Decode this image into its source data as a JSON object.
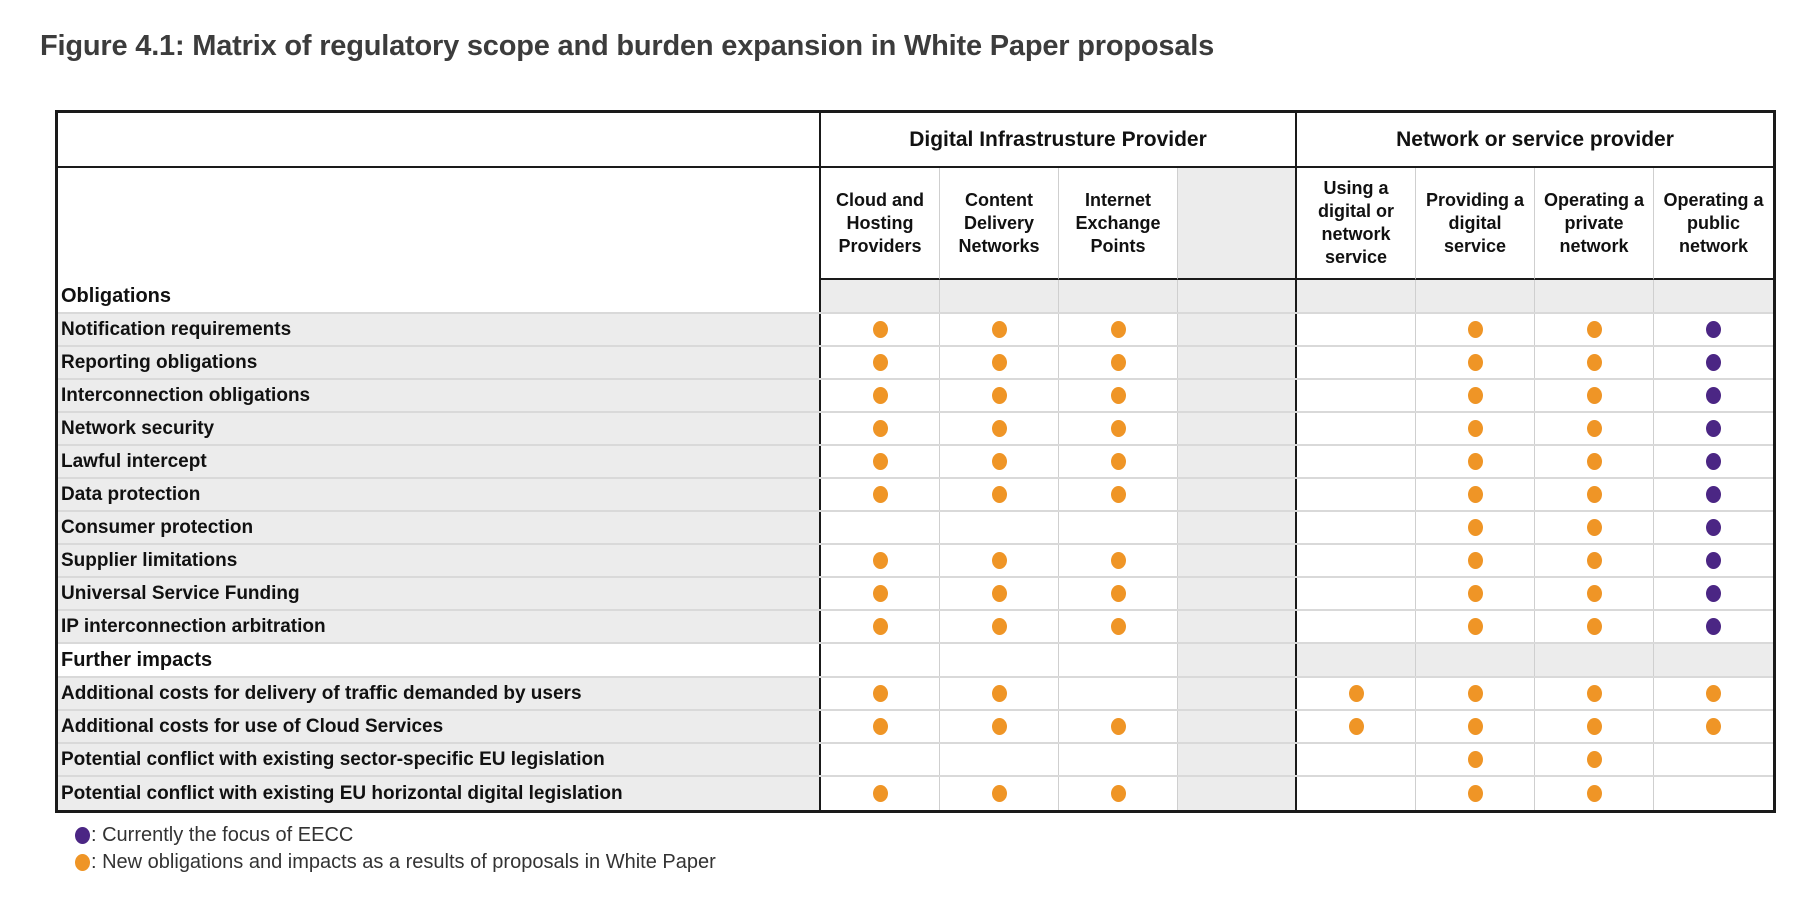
{
  "title": "Figure 4.1: Matrix of regulatory scope and burden expansion in White Paper proposals",
  "colors": {
    "orange": "#EF9526",
    "purple": "#4B2684",
    "shaded_cell": "#ececec",
    "grid_black": "#1a1a1a",
    "row_separator": "#d9d9d9",
    "title_gray": "#3c3c3c"
  },
  "chart_data": {
    "type": "table",
    "title": "Figure 4.1: Matrix of regulatory scope and burden expansion in White Paper proposals",
    "cell_codes": {
      "o": "orange dot",
      "p": "purple dot",
      "g": "shaded empty cell",
      "": "empty cell"
    },
    "column_groups": [
      {
        "label": "Digital Infrastrusture Provider",
        "span": 4
      },
      {
        "label": "Network or service provider",
        "span": 4
      }
    ],
    "columns": [
      "Cloud and Hosting Providers",
      "Content Delivery Networks",
      "Internet Exchange Points",
      "",
      "Using a digital or network service",
      "Providing a digital service",
      "Operating a private network",
      "Operating a public network"
    ],
    "rows": [
      {
        "type": "section",
        "label": "Obligations",
        "cells": [
          "g",
          "g",
          "g",
          "g",
          "g",
          "g",
          "g",
          "g"
        ]
      },
      {
        "type": "data",
        "label": "Notification requirements",
        "cells": [
          "o",
          "o",
          "o",
          "g",
          "",
          "o",
          "o",
          "p"
        ]
      },
      {
        "type": "data",
        "label": "Reporting obligations",
        "cells": [
          "o",
          "o",
          "o",
          "g",
          "",
          "o",
          "o",
          "p"
        ]
      },
      {
        "type": "data",
        "label": "Interconnection obligations",
        "cells": [
          "o",
          "o",
          "o",
          "g",
          "",
          "o",
          "o",
          "p"
        ]
      },
      {
        "type": "data",
        "label": "Network security",
        "cells": [
          "o",
          "o",
          "o",
          "g",
          "",
          "o",
          "o",
          "p"
        ]
      },
      {
        "type": "data",
        "label": "Lawful intercept",
        "cells": [
          "o",
          "o",
          "o",
          "g",
          "",
          "o",
          "o",
          "p"
        ]
      },
      {
        "type": "data",
        "label": "Data protection",
        "cells": [
          "o",
          "o",
          "o",
          "g",
          "",
          "o",
          "o",
          "p"
        ]
      },
      {
        "type": "data",
        "label": "Consumer protection",
        "cells": [
          "",
          "",
          "",
          "g",
          "",
          "o",
          "o",
          "p"
        ]
      },
      {
        "type": "data",
        "label": "Supplier limitations",
        "cells": [
          "o",
          "o",
          "o",
          "g",
          "",
          "o",
          "o",
          "p"
        ]
      },
      {
        "type": "data",
        "label": "Universal Service Funding",
        "cells": [
          "o",
          "o",
          "o",
          "g",
          "",
          "o",
          "o",
          "p"
        ]
      },
      {
        "type": "data",
        "label": "IP interconnection arbitration",
        "cells": [
          "o",
          "o",
          "o",
          "g",
          "",
          "o",
          "o",
          "p"
        ]
      },
      {
        "type": "section",
        "label": "Further impacts",
        "cells": [
          "",
          "",
          "",
          "g",
          "g",
          "g",
          "g",
          "g"
        ]
      },
      {
        "type": "data",
        "label": "Additional costs for delivery of traffic demanded by users",
        "cells": [
          "o",
          "o",
          "",
          "g",
          "o",
          "o",
          "o",
          "o"
        ]
      },
      {
        "type": "data",
        "label": "Additional costs for use of Cloud Services",
        "cells": [
          "o",
          "o",
          "o",
          "g",
          "o",
          "o",
          "o",
          "o"
        ]
      },
      {
        "type": "data",
        "label": "Potential conflict with existing sector-specific EU legislation",
        "cells": [
          "",
          "",
          "",
          "g",
          "",
          "o",
          "o",
          ""
        ]
      },
      {
        "type": "data",
        "label": "Potential conflict with existing EU horizontal digital legislation",
        "cells": [
          "o",
          "o",
          "o",
          "g",
          "",
          "o",
          "o",
          ""
        ]
      }
    ],
    "legend": [
      {
        "dot": "purple",
        "text": ": Currently the focus of EECC"
      },
      {
        "dot": "orange",
        "text": ": New obligations and impacts as a results of proposals in White Paper"
      }
    ]
  }
}
